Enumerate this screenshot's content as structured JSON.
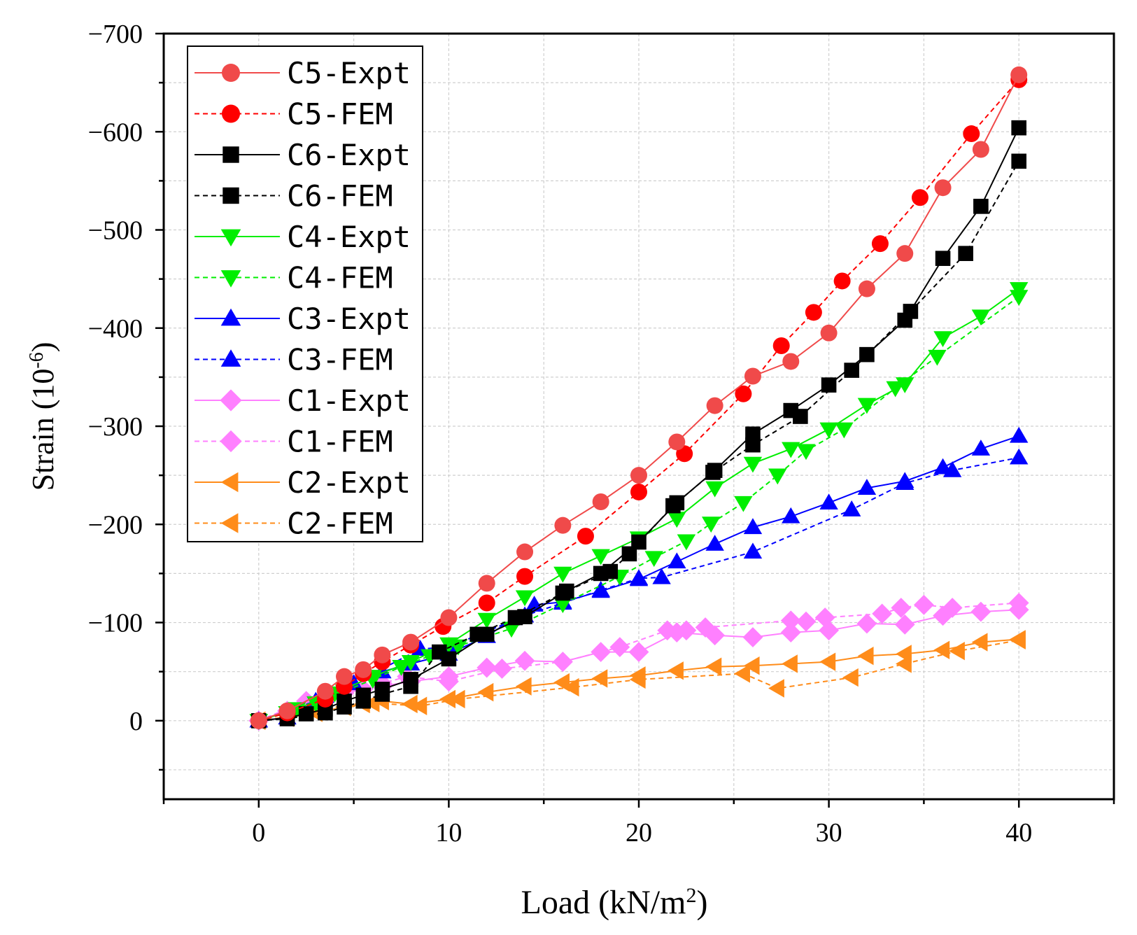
{
  "chart_data": {
    "type": "line",
    "xlabel": "Load  (kN/m",
    "xlabel_sup": "2",
    "xlabel_end": ")",
    "ylabel": "Strain (10",
    "ylabel_sup": "-6",
    "ylabel_end": ")",
    "xlim": [
      -5,
      45
    ],
    "ylim": [
      80,
      -700
    ],
    "grid": true,
    "xticks": [
      0,
      10,
      20,
      30,
      40
    ],
    "xtick_labels": [
      "0",
      "10",
      "20",
      "30",
      "40"
    ],
    "yticks": [
      0,
      -100,
      -200,
      -300,
      -400,
      -500,
      -600,
      -700
    ],
    "ytick_labels": [
      "0",
      "-100",
      "-200",
      "-300",
      "-400",
      "-500",
      "-600",
      "-700"
    ],
    "legend_position": "top-left",
    "series": [
      {
        "name": "C5-Expt",
        "color": "#f04a4a",
        "marker": "circle",
        "dash": "solid",
        "x": [
          0,
          1.5,
          3.5,
          4.5,
          5.5,
          6.5,
          8,
          10,
          12,
          14,
          16,
          18,
          20,
          22,
          24,
          26,
          28,
          30,
          32,
          34,
          36,
          38,
          40
        ],
        "y": [
          0,
          -10,
          -30,
          -45,
          -52,
          -67,
          -80,
          -105,
          -140,
          -172,
          -199,
          -223,
          -250,
          -284,
          -321,
          -351,
          -366,
          -395,
          -440,
          -476,
          -543,
          -582,
          -658
        ]
      },
      {
        "name": "C5-FEM",
        "color": "#ff0000",
        "marker": "circle",
        "dash": "dashed",
        "x": [
          0,
          1.5,
          3.5,
          4.5,
          5.5,
          6.5,
          8,
          9.7,
          12,
          14,
          17.2,
          20,
          22.4,
          25.5,
          27.5,
          29.2,
          30.7,
          32.7,
          34.8,
          37.5,
          40
        ],
        "y": [
          0,
          -8,
          -22,
          -35,
          -48,
          -60,
          -77,
          -96,
          -120,
          -147,
          -188,
          -233,
          -272,
          -333,
          -382,
          -416,
          -448,
          -486,
          -533,
          -598,
          -653
        ]
      },
      {
        "name": "C6-Expt",
        "color": "#000000",
        "marker": "square",
        "dash": "solid",
        "x": [
          0,
          1.5,
          2.5,
          3.5,
          4.5,
          5.5,
          6.5,
          8,
          10,
          12,
          14,
          16,
          18,
          20,
          22,
          24,
          26,
          28,
          30,
          32,
          34,
          36,
          38,
          40
        ],
        "y": [
          0,
          -3,
          -7,
          -12,
          -20,
          -26,
          -32,
          -42,
          -63,
          -88,
          -106,
          -130,
          -150,
          -182,
          -222,
          -255,
          -292,
          -316,
          -342,
          -373,
          -408,
          -471,
          -524,
          -604
        ]
      },
      {
        "name": "C6-FEM",
        "color": "#000000",
        "marker": "square",
        "dash": "dashed",
        "x": [
          0,
          1.5,
          3.5,
          4.5,
          5.5,
          6.5,
          8,
          9.5,
          11.5,
          13.5,
          16.2,
          18.5,
          19.5,
          21.8,
          23.9,
          26,
          28.5,
          31.2,
          34.3,
          37.2,
          40
        ],
        "y": [
          0,
          -2,
          -8,
          -14,
          -20,
          -27,
          -35,
          -70,
          -88,
          -105,
          -132,
          -152,
          -170,
          -219,
          -253,
          -281,
          -310,
          -357,
          -417,
          -476,
          -570
        ]
      },
      {
        "name": "C4-Expt",
        "color": "#00ee00",
        "marker": "triangle-down",
        "dash": "solid",
        "x": [
          0,
          2,
          4,
          6,
          8,
          10,
          12,
          14,
          16,
          18,
          20,
          22,
          24,
          26,
          28,
          30,
          32,
          34,
          36,
          38,
          40
        ],
        "y": [
          0,
          -12,
          -28,
          -45,
          -60,
          -78,
          -103,
          -126,
          -150,
          -168,
          -186,
          -206,
          -237,
          -262,
          -277,
          -297,
          -322,
          -343,
          -390,
          -412,
          -440
        ]
      },
      {
        "name": "C4-FEM",
        "color": "#00ee00",
        "marker": "triangle-down",
        "dash": "dashed",
        "x": [
          0,
          1.5,
          3,
          4.5,
          6,
          7.5,
          9,
          10.5,
          13.3,
          16,
          19,
          20.8,
          22.5,
          23.8,
          25.5,
          27.3,
          28.8,
          30.8,
          33.5,
          35.7,
          40
        ],
        "y": [
          0,
          -8,
          -18,
          -30,
          -42,
          -55,
          -66,
          -76,
          -94,
          -119,
          -147,
          -166,
          -183,
          -201,
          -222,
          -250,
          -275,
          -297,
          -339,
          -371,
          -432
        ]
      },
      {
        "name": "C3-Expt",
        "color": "#0000ff",
        "marker": "triangle-up",
        "dash": "solid",
        "x": [
          0,
          1.5,
          3.5,
          4.5,
          6.5,
          8,
          10,
          12,
          14.5,
          16,
          18,
          20,
          22,
          24,
          26,
          28,
          30,
          32,
          34,
          36,
          38,
          40
        ],
        "y": [
          0,
          -3,
          -25,
          -40,
          -50,
          -58,
          -68,
          -86,
          -118,
          -121,
          -132,
          -144,
          -162,
          -180,
          -197,
          -208,
          -222,
          -237,
          -244,
          -258,
          -277,
          -290
        ]
      },
      {
        "name": "C3-FEM",
        "color": "#0000ff",
        "marker": "triangle-up",
        "dash": "dashed",
        "x": [
          0,
          3,
          5,
          8.5,
          10,
          14,
          16,
          18,
          20,
          21.2,
          26,
          31.2,
          34,
          36.5,
          40
        ],
        "y": [
          0,
          -20,
          -38,
          -73,
          -75,
          -107,
          -120,
          -133,
          -145,
          -146,
          -172,
          -215,
          -242,
          -255,
          -268
        ]
      },
      {
        "name": "C1-Expt",
        "color": "#ff80ff",
        "marker": "diamond",
        "dash": "solid",
        "x": [
          0,
          1.5,
          2.5,
          3.5,
          4.5,
          5.5,
          6.5,
          8,
          10,
          12,
          14,
          16,
          18,
          20,
          22,
          24,
          26,
          28,
          30,
          32,
          34,
          36,
          38,
          40
        ],
        "y": [
          0,
          -10,
          -20,
          -24,
          -28,
          -32,
          -35,
          -40,
          -45,
          -54,
          -61,
          -60,
          -70,
          -70,
          -90,
          -87,
          -85,
          -90,
          -92,
          -99,
          -98,
          -107,
          -111,
          -113
        ]
      },
      {
        "name": "C1-FEM",
        "color": "#ff80ff",
        "marker": "diamond",
        "dash": "dashed",
        "x": [
          0,
          2.5,
          4.5,
          6.5,
          7.8,
          10,
          12.8,
          16,
          19,
          21.5,
          22.5,
          23.5,
          28,
          28.8,
          29.8,
          32.8,
          33.8,
          35,
          36.5,
          40
        ],
        "y": [
          0,
          -20,
          -30,
          -38,
          -45,
          -40,
          -53,
          -60,
          -75,
          -92,
          -92,
          -95,
          -102,
          -101,
          -105,
          -109,
          -115,
          -118,
          -115,
          -120
        ]
      },
      {
        "name": "C2-Expt",
        "color": "#ff8c1a",
        "marker": "triangle-left",
        "dash": "solid",
        "x": [
          0,
          1.5,
          3.5,
          4.5,
          5.5,
          6.5,
          8,
          10,
          12,
          14,
          16,
          18,
          20,
          22,
          24,
          26,
          28,
          30,
          32,
          34,
          36,
          38,
          40
        ],
        "y": [
          0,
          -3,
          -10,
          -14,
          -17,
          -20,
          -17,
          -22,
          -29,
          -35,
          -39,
          -43,
          -46,
          -51,
          -55,
          -56,
          -58,
          -60,
          -66,
          -68,
          -72,
          -80,
          -83
        ]
      },
      {
        "name": "C2-FEM",
        "color": "#ff8c1a",
        "marker": "triangle-left",
        "dash": "dashed",
        "x": [
          0,
          3,
          6,
          8.5,
          10.5,
          16.5,
          20,
          25.5,
          27.3,
          31.2,
          34,
          36.8,
          40
        ],
        "y": [
          0,
          -8,
          -18,
          -15,
          -22,
          -34,
          -42,
          -48,
          -33,
          -44,
          -58,
          -71,
          -82
        ]
      }
    ]
  }
}
